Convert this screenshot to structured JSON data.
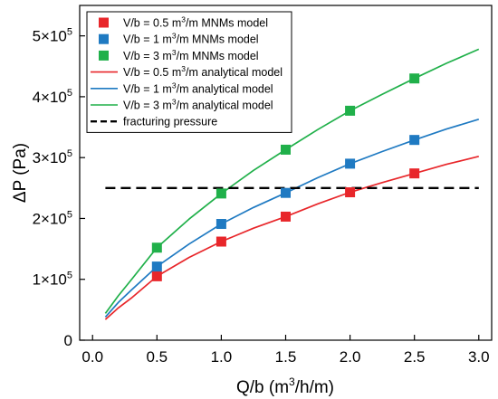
{
  "chart_data": {
    "type": "line",
    "xlabel": {
      "pre": "Q/b (m",
      "sup": "3",
      "post": "/h/m)"
    },
    "ylabel": "ΔP (Pa)",
    "xlim": [
      -0.1,
      3.1
    ],
    "ylim": [
      0,
      550000
    ],
    "x_ticks": [
      {
        "value": 0.0,
        "label": "0.0"
      },
      {
        "value": 0.5,
        "label": "0.5"
      },
      {
        "value": 1.0,
        "label": "1.0"
      },
      {
        "value": 1.5,
        "label": "1.5"
      },
      {
        "value": 2.0,
        "label": "2.0"
      },
      {
        "value": 2.5,
        "label": "2.5"
      },
      {
        "value": 3.0,
        "label": "3.0"
      }
    ],
    "y_ticks": [
      {
        "value": 0,
        "label": "0"
      },
      {
        "value": 100000,
        "mant": "1×10",
        "exp": "5"
      },
      {
        "value": 200000,
        "mant": "2×10",
        "exp": "5"
      },
      {
        "value": 300000,
        "mant": "3×10",
        "exp": "5"
      },
      {
        "value": 400000,
        "mant": "4×10",
        "exp": "5"
      },
      {
        "value": 500000,
        "mant": "5×10",
        "exp": "5"
      }
    ],
    "grid": false,
    "legend_position": "top-left",
    "series": [
      {
        "kind": "markers",
        "color": "#e8262a",
        "legend": {
          "pre": "V/b = 0.5 m",
          "sup": "3",
          "post": "/m MNMs model"
        },
        "points": [
          [
            0.5,
            105000
          ],
          [
            1.0,
            162000
          ],
          [
            1.5,
            203000
          ],
          [
            2.0,
            243000
          ],
          [
            2.5,
            274000
          ]
        ]
      },
      {
        "kind": "markers",
        "color": "#1f7ac2",
        "legend": {
          "pre": "V/b = 1 m",
          "sup": "3",
          "post": "/m MNMs model"
        },
        "points": [
          [
            0.5,
            121000
          ],
          [
            1.0,
            191000
          ],
          [
            1.5,
            242000
          ],
          [
            2.0,
            290000
          ],
          [
            2.5,
            329000
          ]
        ]
      },
      {
        "kind": "markers",
        "color": "#20b04a",
        "legend": {
          "pre": "V/b = 3 m",
          "sup": "3",
          "post": "/m MNMs model"
        },
        "points": [
          [
            0.5,
            152000
          ],
          [
            1.0,
            241000
          ],
          [
            1.5,
            313000
          ],
          [
            2.0,
            377000
          ],
          [
            2.5,
            430000
          ]
        ]
      },
      {
        "kind": "line",
        "color": "#e8262a",
        "legend": {
          "pre": "V/b = 0.5 m",
          "sup": "3",
          "post": "/m analytical model"
        },
        "points": [
          [
            0.1,
            34000
          ],
          [
            0.2,
            53000
          ],
          [
            0.3,
            69000
          ],
          [
            0.5,
            105000
          ],
          [
            0.75,
            136000
          ],
          [
            1.0,
            162000
          ],
          [
            1.25,
            184000
          ],
          [
            1.5,
            203000
          ],
          [
            1.75,
            224000
          ],
          [
            2.0,
            243000
          ],
          [
            2.25,
            259000
          ],
          [
            2.5,
            274000
          ],
          [
            2.75,
            289000
          ],
          [
            3.0,
            302000
          ]
        ]
      },
      {
        "kind": "line",
        "color": "#1f7ac2",
        "legend": {
          "pre": "V/b = 1 m",
          "sup": "3",
          "post": "/m analytical model"
        },
        "points": [
          [
            0.1,
            38000
          ],
          [
            0.2,
            62000
          ],
          [
            0.3,
            82000
          ],
          [
            0.5,
            121000
          ],
          [
            0.75,
            158000
          ],
          [
            1.0,
            191000
          ],
          [
            1.25,
            218000
          ],
          [
            1.5,
            242000
          ],
          [
            1.75,
            267000
          ],
          [
            2.0,
            290000
          ],
          [
            2.25,
            310000
          ],
          [
            2.5,
            329000
          ],
          [
            2.75,
            347000
          ],
          [
            3.0,
            363000
          ]
        ]
      },
      {
        "kind": "line",
        "color": "#20b04a",
        "legend": {
          "pre": "V/b = 3 m",
          "sup": "3",
          "post": "/m analytical model"
        },
        "points": [
          [
            0.1,
            44000
          ],
          [
            0.2,
            73000
          ],
          [
            0.3,
            99000
          ],
          [
            0.5,
            152000
          ],
          [
            0.75,
            199000
          ],
          [
            1.0,
            241000
          ],
          [
            1.25,
            279000
          ],
          [
            1.5,
            313000
          ],
          [
            1.75,
            346000
          ],
          [
            2.0,
            377000
          ],
          [
            2.25,
            404000
          ],
          [
            2.5,
            430000
          ],
          [
            2.75,
            455000
          ],
          [
            3.0,
            478000
          ]
        ]
      },
      {
        "kind": "dashed",
        "color": "#000000",
        "legend": {
          "pre": "fracturing pressure",
          "sup": "",
          "post": ""
        },
        "points": [
          [
            0.1,
            250000
          ],
          [
            3.0,
            250000
          ]
        ]
      }
    ]
  }
}
